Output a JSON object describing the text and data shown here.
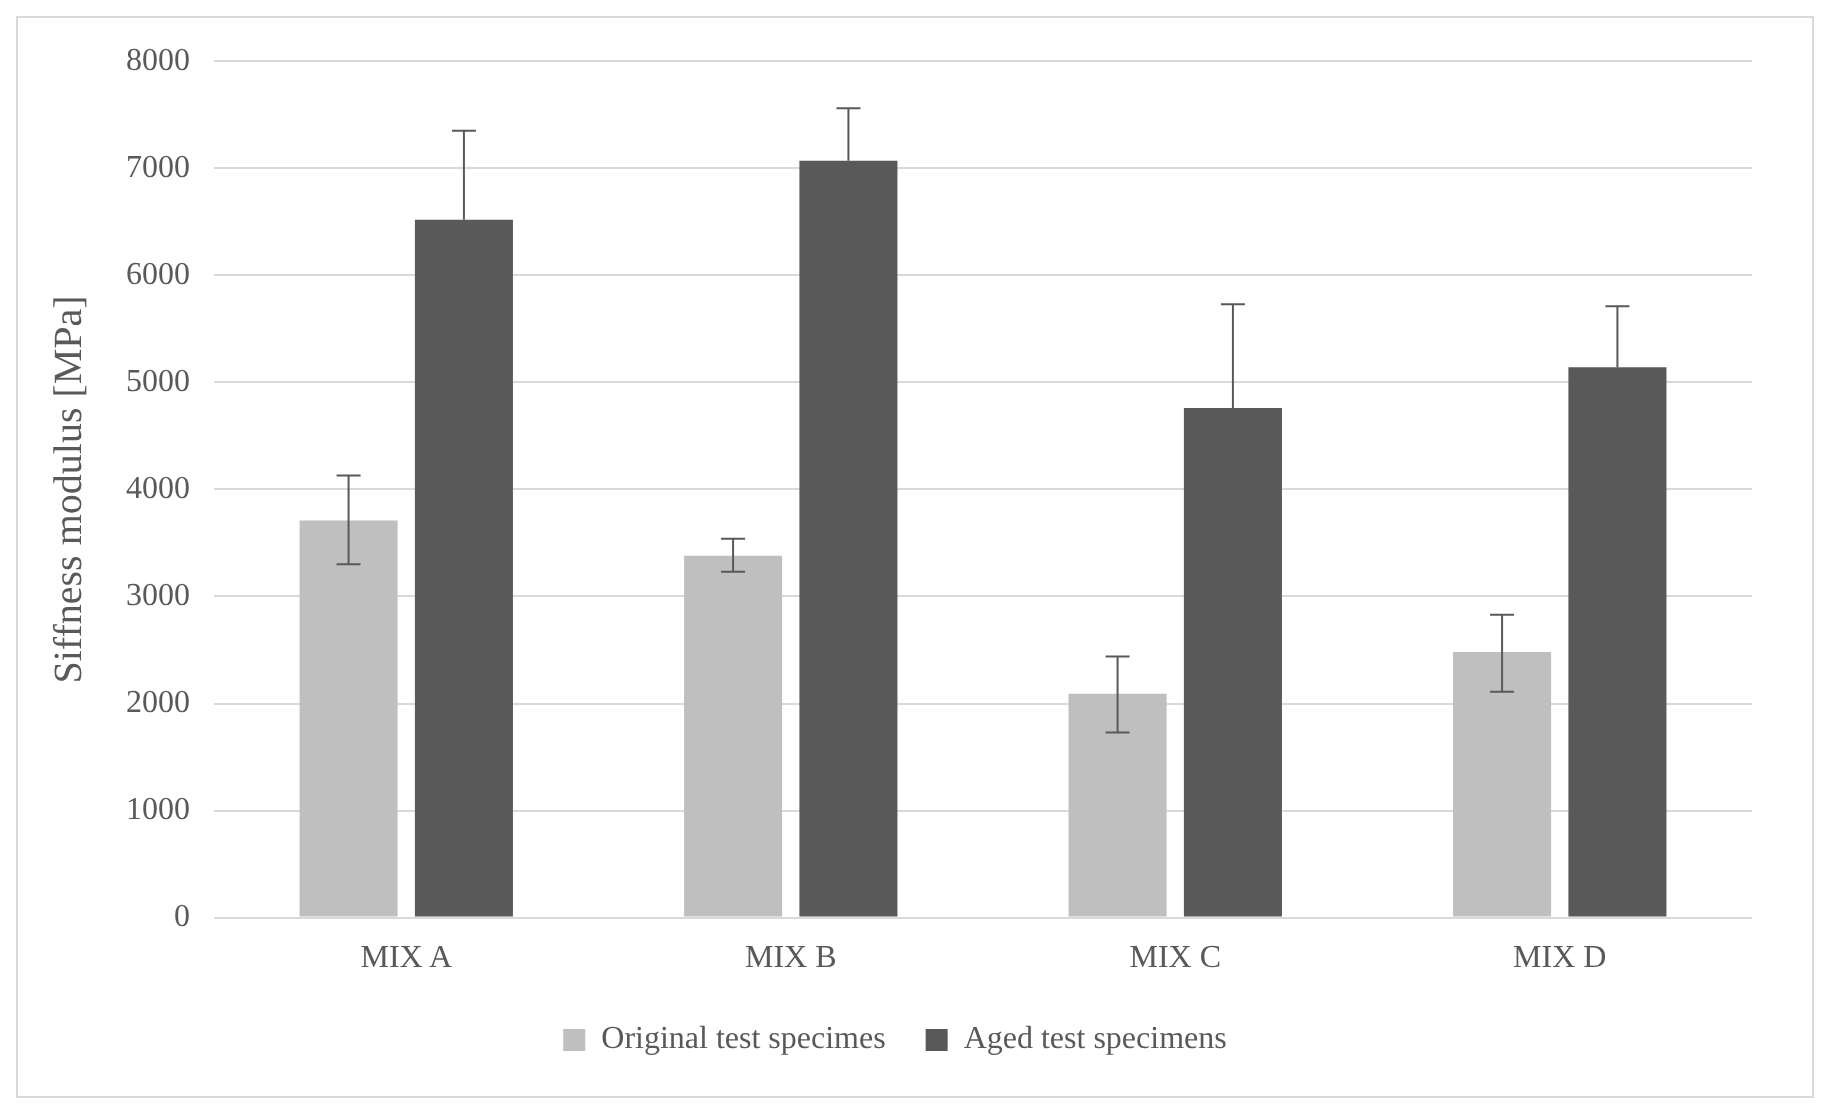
{
  "chart_data": {
    "type": "bar",
    "ylabel": "Siffness modulus [MPa]",
    "categories": [
      "MIX A",
      "MIX B",
      "MIX C",
      "MIX D"
    ],
    "series": [
      {
        "name": "Original test specimes",
        "color": "#bfbfbf",
        "values": [
          3710,
          3380,
          2090,
          2480
        ],
        "errors": [
          [
            3300,
            4130
          ],
          [
            3230,
            3540
          ],
          [
            1730,
            2440
          ],
          [
            2110,
            2830
          ]
        ]
      },
      {
        "name": "Aged test specimens",
        "color": "#595959",
        "values": [
          6520,
          7070,
          4760,
          5140
        ],
        "errors": [
          [
            6520,
            7350
          ],
          [
            7070,
            7560
          ],
          [
            4760,
            5730
          ],
          [
            5140,
            5710
          ]
        ]
      }
    ],
    "ylim": [
      0,
      8000
    ],
    "yticks": [
      0,
      1000,
      2000,
      3000,
      4000,
      5000,
      6000,
      7000,
      8000
    ],
    "grid": "y",
    "legend": "bottom"
  }
}
